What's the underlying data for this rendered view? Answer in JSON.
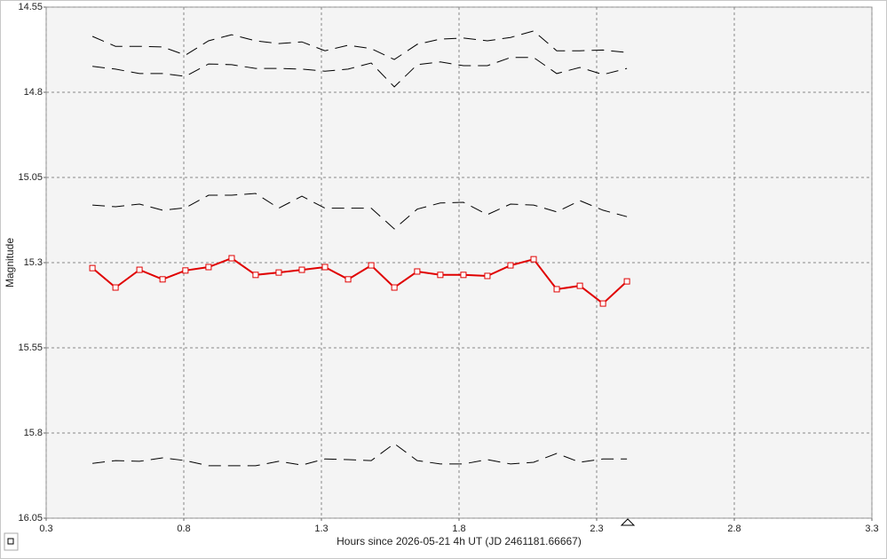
{
  "chart_data": {
    "type": "line",
    "x_label": "Hours since 2026-05-21 4h UT (JD 2461181.66667)",
    "y_label": "Magnitude",
    "x": [
      0.468,
      0.552,
      0.639,
      0.723,
      0.806,
      0.89,
      0.974,
      1.061,
      1.145,
      1.229,
      1.313,
      1.397,
      1.481,
      1.565,
      1.648,
      1.732,
      1.816,
      1.903,
      1.987,
      2.071,
      2.155,
      2.239,
      2.323,
      2.41
    ],
    "series": [
      {
        "color": "#000000",
        "dashed": true,
        "markers": false,
        "values": [
          14.636,
          14.665,
          14.665,
          14.667,
          14.691,
          14.649,
          14.631,
          14.649,
          14.657,
          14.652,
          14.678,
          14.662,
          14.672,
          14.704,
          14.659,
          14.644,
          14.641,
          14.649,
          14.639,
          14.62,
          14.678,
          14.678,
          14.676,
          14.683
        ]
      },
      {
        "color": "#000000",
        "dashed": true,
        "markers": false,
        "values": [
          14.724,
          14.732,
          14.745,
          14.745,
          14.753,
          14.717,
          14.719,
          14.73,
          14.73,
          14.732,
          14.738,
          14.732,
          14.714,
          14.784,
          14.719,
          14.711,
          14.722,
          14.722,
          14.698,
          14.698,
          14.745,
          14.727,
          14.748,
          14.73
        ]
      },
      {
        "color": "#000000",
        "dashed": true,
        "markers": false,
        "values": [
          15.131,
          15.136,
          15.128,
          15.146,
          15.139,
          15.102,
          15.102,
          15.097,
          15.14,
          15.105,
          15.14,
          15.14,
          15.14,
          15.201,
          15.143,
          15.125,
          15.123,
          15.159,
          15.128,
          15.131,
          15.151,
          15.118,
          15.146,
          15.165
        ]
      },
      {
        "color": "#e00000",
        "dashed": false,
        "markers": true,
        "values": [
          15.316,
          15.373,
          15.321,
          15.349,
          15.323,
          15.313,
          15.287,
          15.336,
          15.329,
          15.321,
          15.313,
          15.349,
          15.308,
          15.373,
          15.326,
          15.336,
          15.336,
          15.339,
          15.308,
          15.29,
          15.378,
          15.368,
          15.42,
          15.355
        ]
      },
      {
        "color": "#000000",
        "dashed": true,
        "markers": false,
        "values": [
          15.889,
          15.881,
          15.883,
          15.873,
          15.881,
          15.896,
          15.896,
          15.896,
          15.883,
          15.894,
          15.876,
          15.878,
          15.881,
          15.831,
          15.881,
          15.891,
          15.891,
          15.878,
          15.891,
          15.886,
          15.86,
          15.886,
          15.876,
          15.876
        ]
      }
    ],
    "xlim": [
      0.3,
      3.3
    ],
    "xticks": [
      0.3,
      0.8,
      1.3,
      1.8,
      2.3,
      2.8,
      3.3
    ],
    "ylim": [
      14.55,
      16.05
    ],
    "yticks": [
      14.55,
      14.8,
      15.05,
      15.3,
      15.55,
      15.8,
      16.05
    ],
    "y_inverted": true,
    "grid": true
  }
}
